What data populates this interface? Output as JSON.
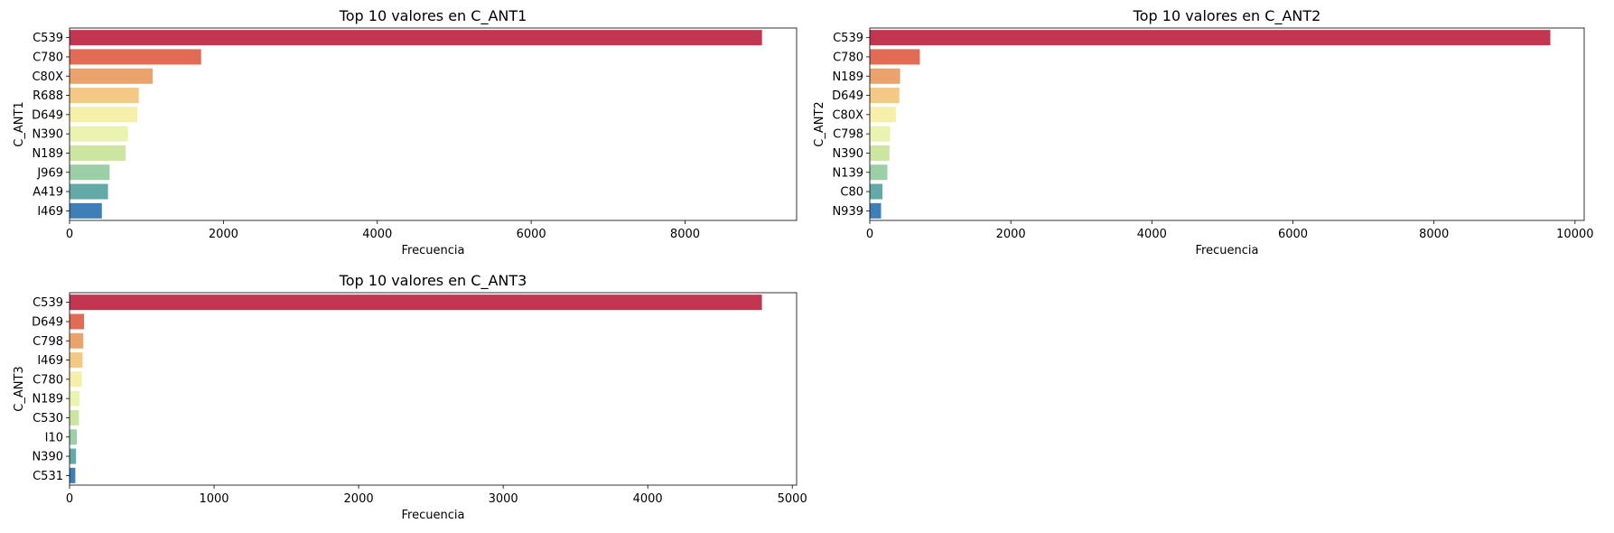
{
  "palette": [
    "#c2374f",
    "#e16b55",
    "#eba36e",
    "#f3c985",
    "#f5efaa",
    "#eaf4b0",
    "#cce5a0",
    "#9ccfa6",
    "#63a9a8",
    "#3f7fb8"
  ],
  "chart_data": [
    {
      "type": "bar",
      "orientation": "horizontal",
      "title": "Top 10 valores en C_ANT1",
      "xlabel": "Frecuencia",
      "ylabel": "C_ANT1",
      "categories": [
        "C539",
        "C780",
        "C80X",
        "R688",
        "D649",
        "N390",
        "N189",
        "J969",
        "A419",
        "I469"
      ],
      "values": [
        9000,
        1710,
        1080,
        900,
        880,
        760,
        730,
        520,
        500,
        420
      ],
      "xlim": [
        0,
        9450
      ],
      "xticks": [
        0,
        2000,
        4000,
        6000,
        8000
      ],
      "grid": false,
      "legend": "none"
    },
    {
      "type": "bar",
      "orientation": "horizontal",
      "title": "Top 10 valores en C_ANT2",
      "xlabel": "Frecuencia",
      "ylabel": "C_ANT2",
      "categories": [
        "C539",
        "C780",
        "N189",
        "D649",
        "C80X",
        "C798",
        "N390",
        "N139",
        "C80",
        "N939"
      ],
      "values": [
        9650,
        710,
        430,
        420,
        370,
        290,
        280,
        250,
        180,
        160
      ],
      "xlim": [
        0,
        10130
      ],
      "xticks": [
        0,
        2000,
        4000,
        6000,
        8000,
        10000
      ],
      "grid": false,
      "legend": "none"
    },
    {
      "type": "bar",
      "orientation": "horizontal",
      "title": "Top 10 valores en C_ANT3",
      "xlabel": "Frecuencia",
      "ylabel": "C_ANT3",
      "categories": [
        "C539",
        "D649",
        "C798",
        "I469",
        "C780",
        "N189",
        "C530",
        "I10",
        "N390",
        "C531"
      ],
      "values": [
        4790,
        100,
        95,
        90,
        85,
        70,
        65,
        50,
        45,
        40
      ],
      "xlim": [
        0,
        5030
      ],
      "xticks": [
        0,
        1000,
        2000,
        3000,
        4000,
        5000
      ],
      "grid": false,
      "legend": "none"
    }
  ]
}
